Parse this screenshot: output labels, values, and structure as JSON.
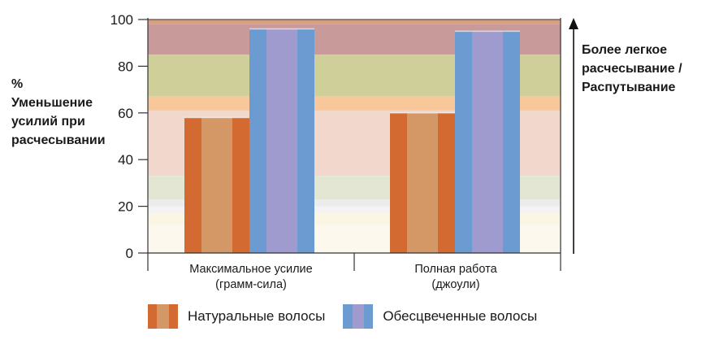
{
  "chart_data": {
    "type": "bar",
    "categories": [
      [
        "Максимальное усилие",
        "(грамм-сила)"
      ],
      [
        "Полная работа",
        "(джоули)"
      ]
    ],
    "series": [
      {
        "name": "Натуральные волосы",
        "values": [
          58,
          60
        ]
      },
      {
        "name": "Обесцвеченные волосы",
        "values": [
          96,
          95
        ]
      }
    ],
    "ylabel": [
      "%",
      "Уменьшение",
      "усилий при",
      "расчесывании"
    ],
    "annotation": [
      "Более легкое",
      "расчесывание /",
      "Распутывание"
    ],
    "ylim": [
      0,
      100
    ],
    "yticks": [
      0,
      20,
      40,
      60,
      80,
      100
    ],
    "background_bands": [
      {
        "from": 98,
        "to": 100,
        "color": "#d9a080"
      },
      {
        "from": 85,
        "to": 98,
        "color": "#c99a9a"
      },
      {
        "from": 67,
        "to": 85,
        "color": "#cfcf9a"
      },
      {
        "from": 61,
        "to": 67,
        "color": "#f8c89a"
      },
      {
        "from": 33,
        "to": 61,
        "color": "#f2d8cc"
      },
      {
        "from": 23,
        "to": 33,
        "color": "#e4e6d4"
      },
      {
        "from": 20,
        "to": 23,
        "color": "#ececec"
      },
      {
        "from": 17,
        "to": 20,
        "color": "#f3f3f3"
      },
      {
        "from": 12,
        "to": 17,
        "color": "#fbf5e4"
      },
      {
        "from": 0,
        "to": 12,
        "color": "#fcf8ee"
      }
    ],
    "colors": {
      "natural_outer": "#d26a32",
      "natural_inner": "#d39866",
      "bleached_outer": "#6b9bd1",
      "bleached_inner": "#9f9bce"
    },
    "legend_placement": "bottom"
  }
}
